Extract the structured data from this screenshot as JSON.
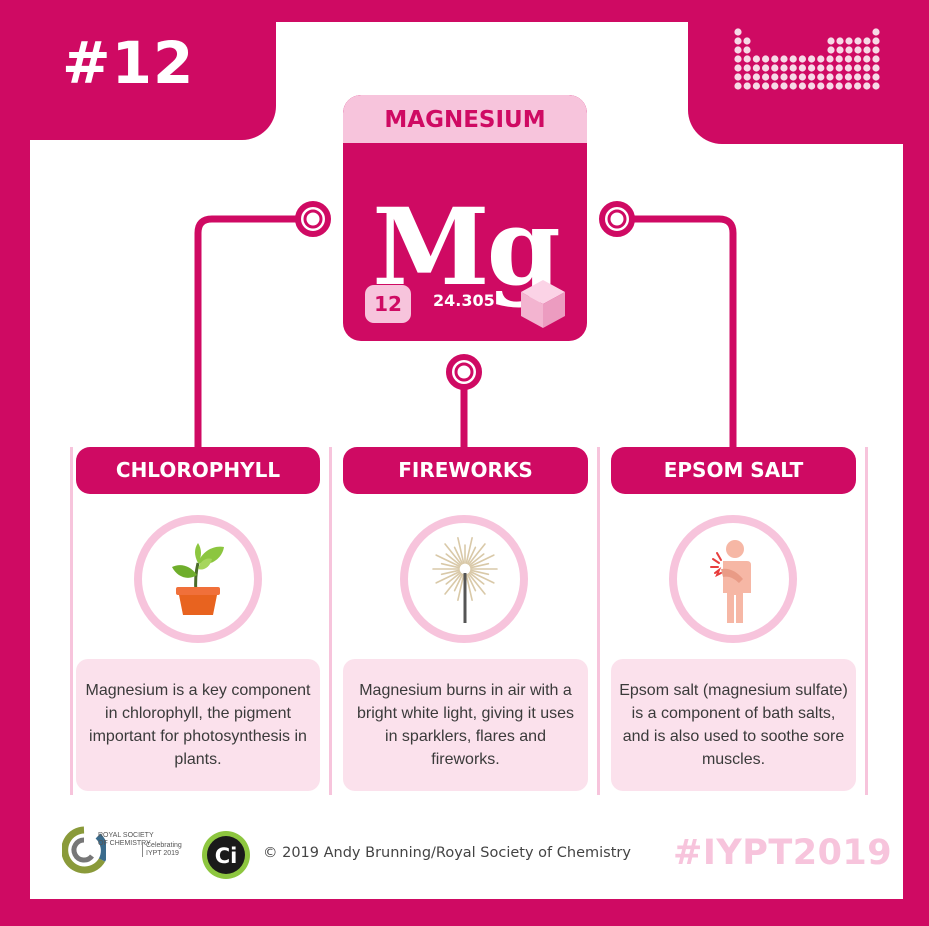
{
  "header": {
    "issue_number": "#12"
  },
  "element": {
    "name": "MAGNESIUM",
    "symbol": "Mg",
    "atomic_number": "12",
    "atomic_mass": "24.305"
  },
  "columns": [
    {
      "title": "CHLOROPHYLL",
      "icon": "plant-pot-icon",
      "description": "Magnesium is a key component in chlorophyll, the pigment important for photosynthesis in plants."
    },
    {
      "title": "FIREWORKS",
      "icon": "sparkler-icon",
      "description": "Magnesium burns in air with a bright white light, giving it uses in sparklers, flares and fireworks."
    },
    {
      "title": "EPSOM SALT",
      "icon": "sore-muscle-person-icon",
      "description": "Epsom salt (magnesium sulfate) is a component of bath salts, and is also used to soothe sore muscles."
    }
  ],
  "footer": {
    "rsc_line1": "ROYAL SOCIETY",
    "rsc_line2": "OF CHEMISTRY",
    "celebrating_line1": "Celebrating",
    "celebrating_line2": "IYPT 2019",
    "ci_logo_text": "Ci",
    "copyright": "© 2019 Andy Brunning/Royal Society of Chemistry",
    "hashtag": "#IYPT2019"
  },
  "colors": {
    "brand_magenta": "#cf0a63",
    "light_pink": "#f7c4dc",
    "pale_pink": "#fbe1ec"
  }
}
